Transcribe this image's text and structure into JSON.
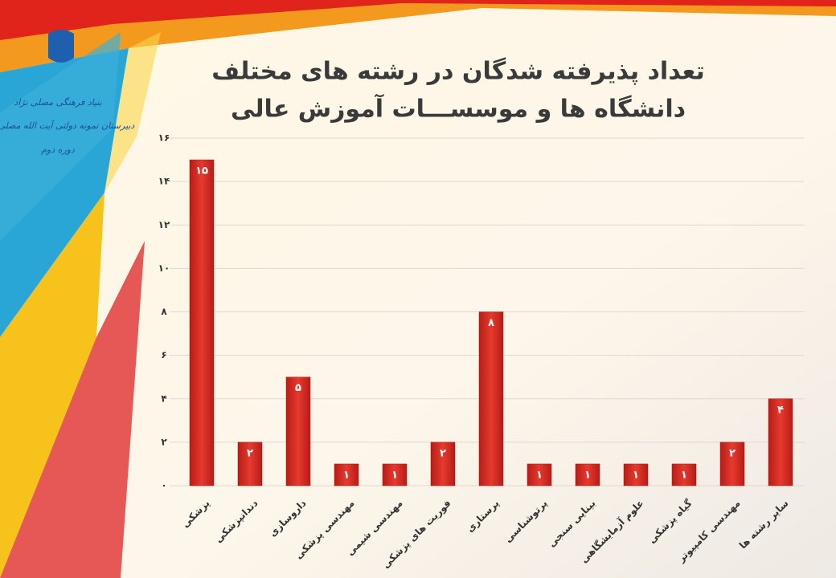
{
  "header": {
    "logo_lines": [
      "بنیاد فرهنگی مصلی نژاد",
      "دبیرستان نمونه دولتی آیت الله مصلی نژاد",
      "دوره دوم"
    ]
  },
  "chart_data": {
    "type": "bar",
    "title": [
      "تعداد پذیرفته شدگان در رشته های مختلف",
      "دانشگاه ها و موسســـات آموزش عالی"
    ],
    "categories": [
      "پزشکی",
      "دندانپزشکی",
      "داروسازی",
      "مهندسی پزشکی",
      "مهندسی شیمی",
      "فوریت های پزشکی",
      "پرستاری",
      "پرتوشناسی",
      "بینایی سنجی",
      "علوم آزمایشگاهی",
      "گیاه پزشکی",
      "مهندسی کامپیوتر",
      "سایر رشته ها"
    ],
    "values": [
      15,
      2,
      5,
      1,
      1,
      2,
      8,
      1,
      1,
      1,
      1,
      2,
      4
    ],
    "value_labels": [
      "۱۵",
      "۲",
      "۵",
      "۱",
      "۱",
      "۲",
      "۸",
      "۱",
      "۱",
      "۱",
      "۱",
      "۲",
      "۴"
    ],
    "color": "#d42a22",
    "ylim": [
      0,
      16
    ],
    "yticks": [
      {
        "value": 0,
        "label": "۰"
      },
      {
        "value": 2,
        "label": "۲"
      },
      {
        "value": 4,
        "label": "۴"
      },
      {
        "value": 6,
        "label": "۶"
      },
      {
        "value": 8,
        "label": "۸"
      },
      {
        "value": 10,
        "label": "۱۰"
      },
      {
        "value": 12,
        "label": "۱۲"
      },
      {
        "value": 14,
        "label": "۱۴"
      },
      {
        "value": 16,
        "label": "۱۶"
      }
    ],
    "grid": true
  }
}
